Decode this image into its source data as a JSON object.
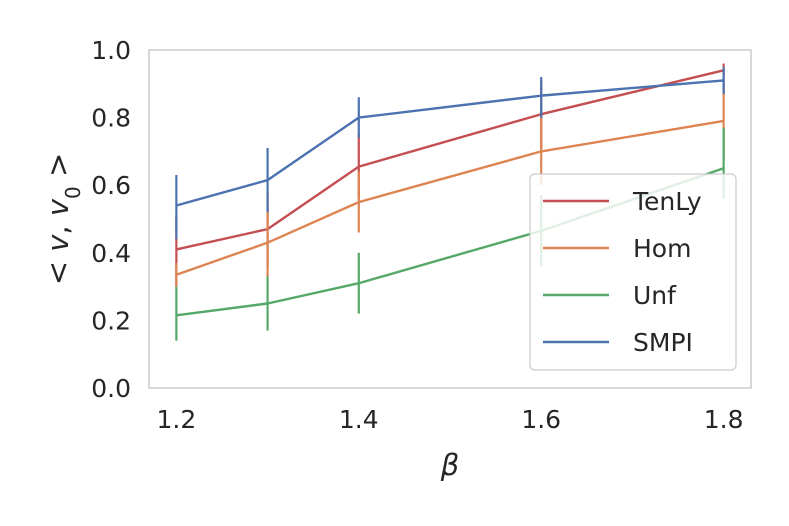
{
  "chart_data": {
    "type": "line",
    "title": "",
    "xlabel": "β",
    "ylabel_parts": {
      "open": "< ",
      "v": "v",
      "comma": ", ",
      "v0": "v",
      "sub": "0",
      "close": " >"
    },
    "xlim": [
      1.17,
      1.83
    ],
    "ylim": [
      0.0,
      1.0
    ],
    "xticks": [
      1.2,
      1.4,
      1.6,
      1.8
    ],
    "yticks": [
      0.0,
      0.2,
      0.4,
      0.6,
      0.8,
      1.0
    ],
    "xtick_labels": [
      "1.2",
      "1.4",
      "1.6",
      "1.8"
    ],
    "ytick_labels": [
      "0.0",
      "0.2",
      "0.4",
      "0.6",
      "0.8",
      "1.0"
    ],
    "grid": false,
    "legend_position": "center-right",
    "x": [
      1.2,
      1.3,
      1.4,
      1.6,
      1.8
    ],
    "series": [
      {
        "name": "TenLy",
        "color": "#c44e52",
        "values": [
          0.41,
          0.47,
          0.655,
          0.81,
          0.94
        ],
        "err_low": [
          0.3,
          0.36,
          0.56,
          0.71,
          0.87
        ],
        "err_high": [
          0.51,
          0.58,
          0.75,
          0.91,
          0.96
        ]
      },
      {
        "name": "Hom",
        "color": "#dd8452",
        "values": [
          0.335,
          0.43,
          0.55,
          0.7,
          0.79
        ],
        "err_low": [
          0.3,
          0.33,
          0.46,
          0.6,
          0.68
        ],
        "err_high": [
          0.37,
          0.53,
          0.64,
          0.8,
          0.88
        ]
      },
      {
        "name": "Unf",
        "color": "#55a868",
        "values": [
          0.215,
          0.25,
          0.31,
          0.465,
          0.65
        ],
        "err_low": [
          0.14,
          0.17,
          0.22,
          0.36,
          0.56
        ],
        "err_high": [
          0.3,
          0.33,
          0.4,
          0.57,
          0.77
        ]
      },
      {
        "name": "SMPI",
        "color": "#4c72b0",
        "values": [
          0.54,
          0.615,
          0.8,
          0.865,
          0.91
        ],
        "err_low": [
          0.44,
          0.52,
          0.74,
          0.8,
          0.87
        ],
        "err_high": [
          0.63,
          0.71,
          0.86,
          0.92,
          0.95
        ]
      }
    ]
  }
}
